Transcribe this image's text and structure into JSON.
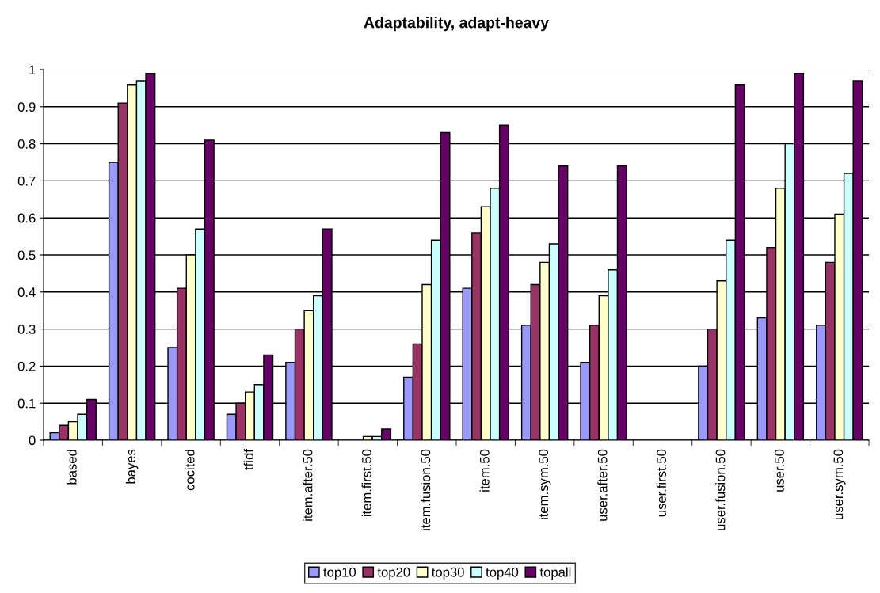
{
  "chart_data": {
    "type": "bar",
    "title": "Adaptability, adapt-heavy",
    "categories": [
      "based",
      "bayes",
      "cocited",
      "tfidf",
      "item.after.50",
      "item.first.50",
      "item.fusion.50",
      "item.50",
      "item.sym.50",
      "user.after.50",
      "user.first.50",
      "user.fusion.50",
      "user.50",
      "user.sym.50"
    ],
    "series": [
      {
        "name": "top10",
        "color": "#9999ff",
        "values": [
          0.02,
          0.75,
          0.25,
          0.07,
          0.21,
          0,
          0.17,
          0.41,
          0.31,
          0.21,
          0,
          0.2,
          0.33,
          0.31
        ]
      },
      {
        "name": "top20",
        "color": "#993366",
        "values": [
          0.04,
          0.91,
          0.41,
          0.1,
          0.3,
          0,
          0.26,
          0.56,
          0.42,
          0.31,
          0,
          0.3,
          0.52,
          0.48
        ]
      },
      {
        "name": "top30",
        "color": "#ffffcc",
        "values": [
          0.05,
          0.96,
          0.5,
          0.13,
          0.35,
          0.01,
          0.42,
          0.63,
          0.48,
          0.39,
          0,
          0.43,
          0.68,
          0.61
        ]
      },
      {
        "name": "top40",
        "color": "#ccffff",
        "values": [
          0.07,
          0.97,
          0.57,
          0.15,
          0.39,
          0.01,
          0.54,
          0.68,
          0.53,
          0.46,
          0,
          0.54,
          0.8,
          0.72
        ]
      },
      {
        "name": "topall",
        "color": "#660066",
        "values": [
          0.11,
          0.99,
          0.81,
          0.23,
          0.57,
          0.03,
          0.83,
          0.85,
          0.74,
          0.74,
          0,
          0.96,
          0.99,
          0.97
        ]
      }
    ],
    "ylim": [
      0,
      1
    ],
    "yticks": [
      0,
      0.1,
      0.2,
      0.3,
      0.4,
      0.5,
      0.6,
      0.7,
      0.8,
      0.9,
      1
    ],
    "grid": "y",
    "legend": "bottom"
  }
}
